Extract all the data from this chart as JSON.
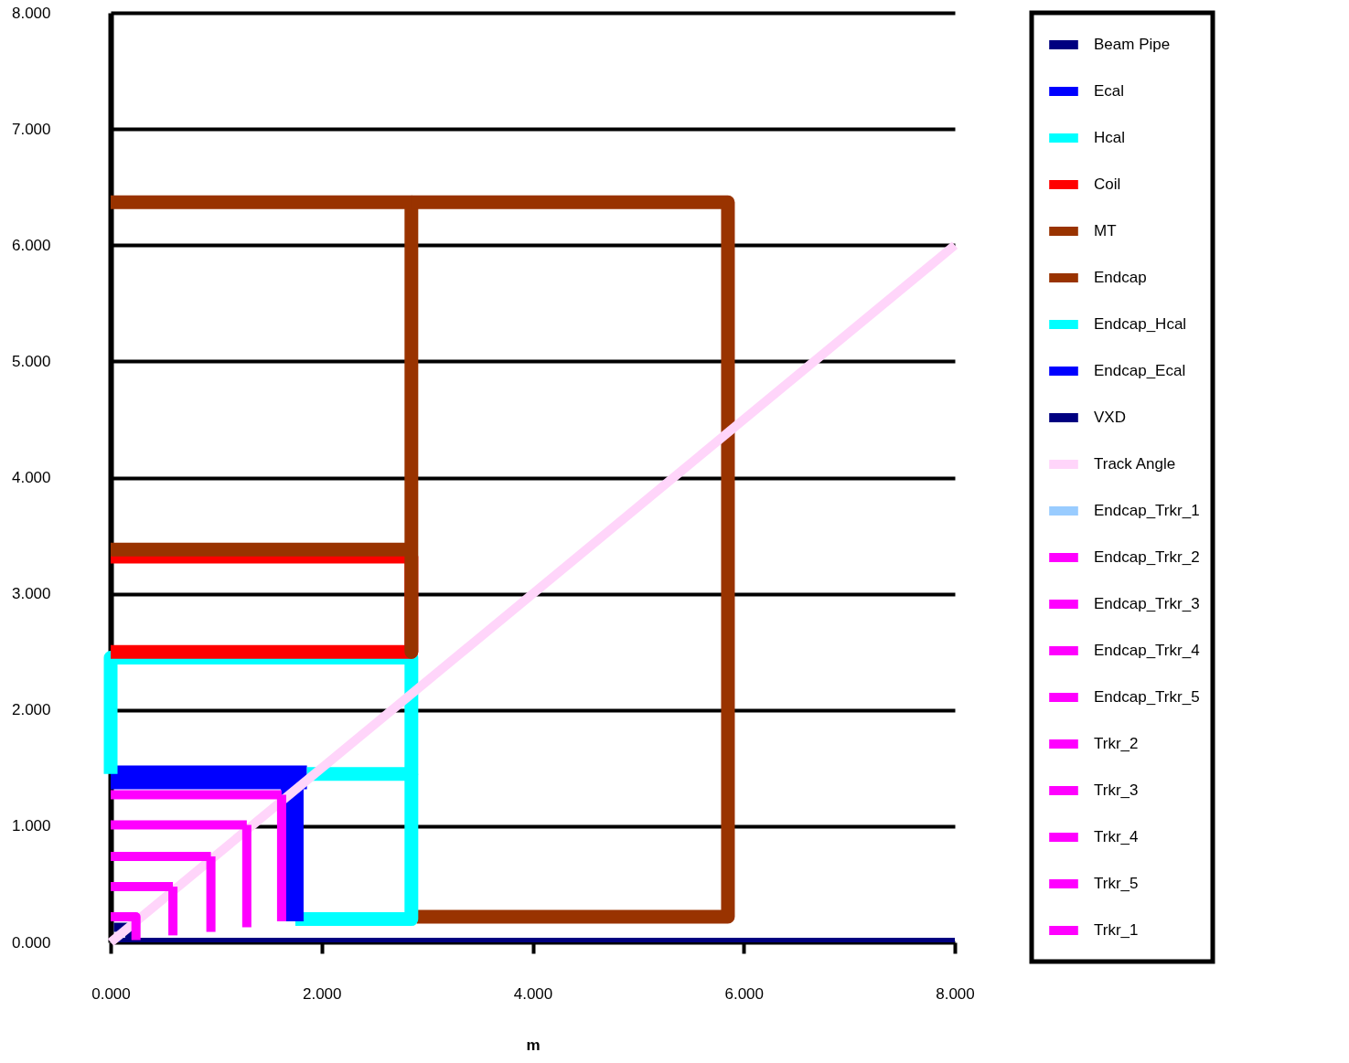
{
  "chart_data": {
    "type": "line",
    "xlabel": "m",
    "legend": "right",
    "grid": "y",
    "marker": "none",
    "line_style": "solid",
    "xlim": [
      0,
      8
    ],
    "ylim": [
      0,
      8
    ],
    "xticks": [
      {
        "value": 0,
        "label": "0.000"
      },
      {
        "value": 2,
        "label": "2.000"
      },
      {
        "value": 4,
        "label": "4.000"
      },
      {
        "value": 6,
        "label": "6.000"
      },
      {
        "value": 8,
        "label": "8.000"
      }
    ],
    "yticks": [
      {
        "value": 0,
        "label": "0.000"
      },
      {
        "value": 1,
        "label": "1.000"
      },
      {
        "value": 2,
        "label": "2.000"
      },
      {
        "value": 3,
        "label": "3.000"
      },
      {
        "value": 4,
        "label": "4.000"
      },
      {
        "value": 5,
        "label": "5.000"
      },
      {
        "value": 6,
        "label": "6.000"
      },
      {
        "value": 7,
        "label": "7.000"
      },
      {
        "value": 8,
        "label": "8.000"
      }
    ],
    "series": [
      {
        "name": "Beam Pipe",
        "color": "#000080",
        "x": [
          0,
          8
        ],
        "values": [
          0.02,
          0.02
        ]
      },
      {
        "name": "Ecal",
        "color": "#0000ff",
        "x": [
          0,
          1.86
        ],
        "values": [
          1.42,
          1.42
        ]
      },
      {
        "name": "Hcal",
        "color": "#00ffff",
        "x": [
          0,
          0,
          2.85,
          2.85,
          1.86
        ],
        "values": [
          1.45,
          2.45,
          2.45,
          1.45,
          1.45
        ]
      },
      {
        "name": "Coil",
        "color": "#ff0000",
        "x": [
          0,
          2.85,
          2.85,
          0
        ],
        "values": [
          3.32,
          3.32,
          2.5,
          2.5
        ]
      },
      {
        "name": "MT",
        "color": "#993300",
        "x": [
          0,
          2.85,
          2.85,
          2.85,
          0
        ],
        "values": [
          3.38,
          3.38,
          2.5,
          6.37,
          6.37
        ]
      },
      {
        "name": "Endcap",
        "color": "#993300",
        "x": [
          2.85,
          5.85,
          5.85,
          2.9
        ],
        "values": [
          6.37,
          6.37,
          0.22,
          0.22
        ]
      },
      {
        "name": "Endcap_Hcal",
        "color": "#00ffff",
        "x": [
          1.75,
          2.85,
          2.85
        ],
        "values": [
          0.2,
          0.2,
          1.45
        ]
      },
      {
        "name": "Endcap_Ecal",
        "color": "#0000ff",
        "x": [
          1.72,
          1.72
        ],
        "values": [
          0.18,
          1.36
        ]
      },
      {
        "name": "VXD",
        "color": "#000080",
        "x": [
          0.03,
          0.18,
          0.18
        ],
        "values": [
          0.13,
          0.13,
          0.02
        ]
      },
      {
        "name": "Track Angle",
        "color": "#ffd5fa",
        "x": [
          0,
          8
        ],
        "values": [
          0,
          6
        ]
      },
      {
        "name": "Endcap_Trkr_1",
        "color": "#99ccff"
      },
      {
        "name": "Endcap_Trkr_2",
        "color": "#ff00ff",
        "x": [
          0.59,
          0.59
        ],
        "values": [
          0.06,
          0.48
        ]
      },
      {
        "name": "Endcap_Trkr_3",
        "color": "#ff00ff",
        "x": [
          0.95,
          0.95
        ],
        "values": [
          0.09,
          0.74
        ]
      },
      {
        "name": "Endcap_Trkr_4",
        "color": "#ff00ff",
        "x": [
          1.29,
          1.29
        ],
        "values": [
          0.13,
          1.01
        ]
      },
      {
        "name": "Endcap_Trkr_5",
        "color": "#ff00ff",
        "x": [
          1.62,
          1.62
        ],
        "values": [
          0.18,
          1.27
        ]
      },
      {
        "name": "Trkr_2",
        "color": "#ff00ff",
        "x": [
          0,
          0.59
        ],
        "values": [
          0.48,
          0.48
        ]
      },
      {
        "name": "Trkr_3",
        "color": "#ff00ff",
        "x": [
          0,
          0.95
        ],
        "values": [
          0.74,
          0.74
        ]
      },
      {
        "name": "Trkr_4",
        "color": "#ff00ff",
        "x": [
          0,
          1.29
        ],
        "values": [
          1.01,
          1.01
        ]
      },
      {
        "name": "Trkr_5",
        "color": "#ff00ff",
        "x": [
          0,
          1.62
        ],
        "values": [
          1.27,
          1.27
        ]
      },
      {
        "name": "Trkr_1",
        "color": "#ff00ff",
        "x": [
          0,
          0.24,
          0.24
        ],
        "values": [
          0.22,
          0.22,
          0.02
        ]
      }
    ]
  }
}
